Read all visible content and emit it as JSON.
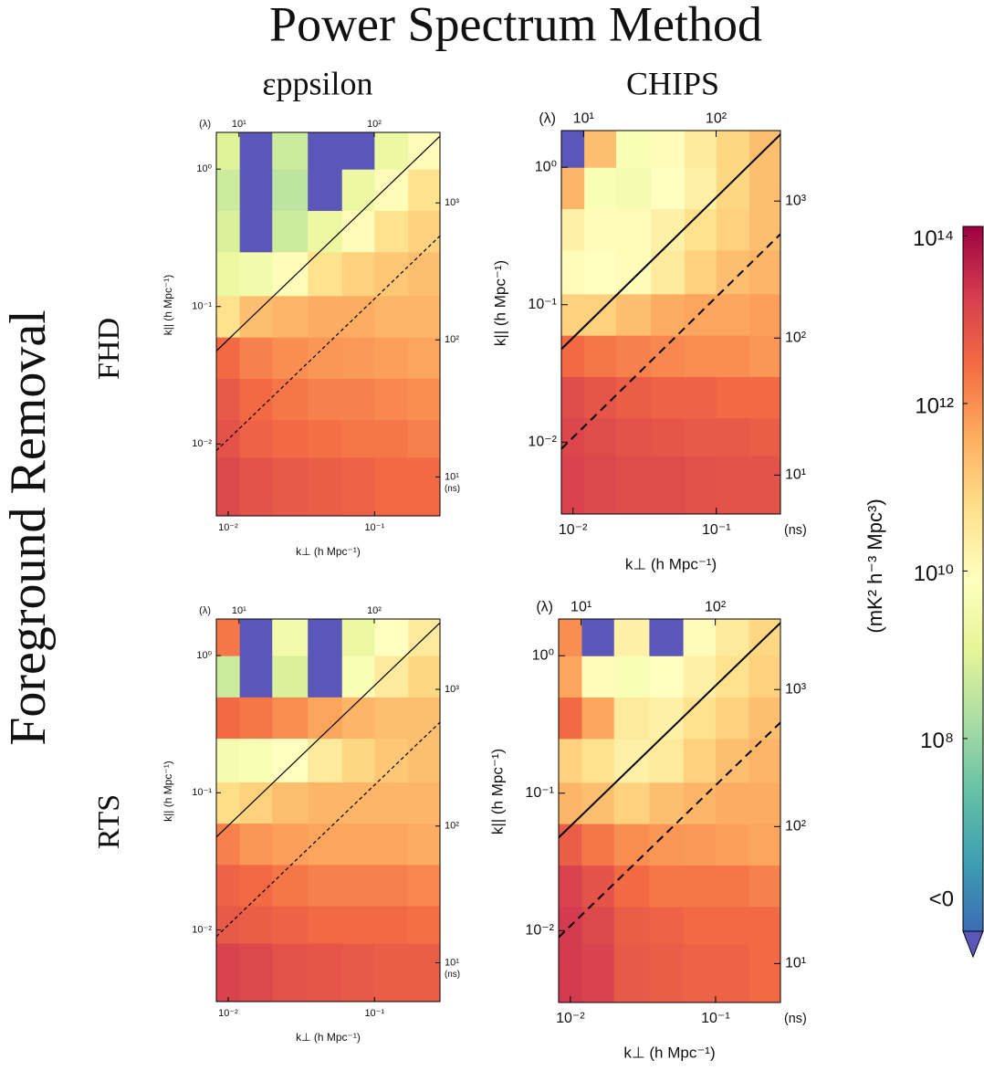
{
  "title": "Power Spectrum Method",
  "row_group_label": "Foreground Removal",
  "column_labels": [
    "εppsilon",
    "CHIPS"
  ],
  "row_labels": [
    "FHD",
    "RTS"
  ],
  "chart_data": [
    {
      "type": "heatmap",
      "x_label": "k⊥ (h Mpc⁻¹)",
      "y_label": "k|| (h Mpc⁻¹)",
      "x2_unit": "(λ)",
      "y2_unit": "(ns)",
      "log": true,
      "xlim": [
        0.0083,
        0.28
      ],
      "ylim": [
        0.003,
        1.85
      ],
      "x2lim": [
        6.8,
        306
      ],
      "y2lim": [
        5.2,
        3270
      ],
      "xticks": [
        {
          "value": 0.01,
          "label": "10⁻²"
        },
        {
          "value": 0.1,
          "label": "10⁻¹"
        }
      ],
      "yticks": [
        {
          "value": 1,
          "label": "10⁰"
        },
        {
          "value": 0.1,
          "label": "10⁻¹"
        },
        {
          "value": 0.01,
          "label": "10⁻²"
        }
      ],
      "x2ticks": [
        {
          "value": 10,
          "label": "10¹"
        },
        {
          "value": 100,
          "label": "10²"
        }
      ],
      "y2ticks": [
        {
          "value": 10,
          "label": "10¹"
        },
        {
          "value": 100,
          "label": "10²"
        },
        {
          "value": 1000,
          "label": "10³"
        }
      ],
      "x_edges": [
        0.0083,
        0.012,
        0.02,
        0.035,
        0.06,
        0.1,
        0.17,
        0.28
      ],
      "y_edges": [
        0.003,
        0.008,
        0.015,
        0.03,
        0.06,
        0.12,
        0.25,
        0.5,
        1.0,
        1.85
      ],
      "z": [
        [
          12000000000000.0,
          8000000000000.0,
          6000000000000.0,
          5000000000000.0,
          4000000000000.0,
          3000000000000.0,
          3000000000000.0
        ],
        [
          8000000000000.0,
          4000000000000.0,
          3000000000000.0,
          2500000000000.0,
          2000000000000.0,
          2000000000000.0,
          1500000000000.0
        ],
        [
          6000000000000.0,
          3000000000000.0,
          2000000000000.0,
          1500000000000.0,
          1500000000000.0,
          1200000000000.0,
          1000000000000.0
        ],
        [
          3000000000000.0,
          1500000000000.0,
          1000000000000.0,
          800000000000.0,
          700000000000.0,
          600000000000.0,
          500000000000.0
        ],
        [
          50000000000.0,
          200000000000.0,
          300000000000.0,
          400000000000.0,
          400000000000.0,
          300000000000.0,
          300000000000.0
        ],
        [
          2000000000.0,
          3000000000.0,
          10000000000.0,
          50000000000.0,
          100000000000.0,
          150000000000.0,
          200000000000.0
        ],
        [
          800000000.0,
          -100000000.0,
          500000000.0,
          2000000000.0,
          10000000000.0,
          50000000000.0,
          100000000000.0
        ],
        [
          500000000.0,
          -100000000.0,
          300000000.0,
          -100000000.0,
          2000000000.0,
          10000000000.0,
          50000000000.0
        ],
        [
          1000000000.0,
          -100000000.0,
          500000000.0,
          -100000000.0,
          -100000000.0,
          2000000000.0,
          10000000000.0
        ]
      ]
    },
    {
      "type": "heatmap",
      "x_label": "k⊥ (h Mpc⁻¹)",
      "y_label": "k|| (h Mpc⁻¹)",
      "x2_unit": "(λ)",
      "y2_unit": "(ns)",
      "log": true,
      "xlim": [
        0.0083,
        0.28
      ],
      "ylim": [
        0.003,
        1.85
      ],
      "x2lim": [
        6.8,
        306
      ],
      "y2lim": [
        5.2,
        3270
      ],
      "xticks": [
        {
          "value": 0.01,
          "label": "10⁻²"
        },
        {
          "value": 0.1,
          "label": "10⁻¹"
        }
      ],
      "yticks": [
        {
          "value": 1,
          "label": "10⁰"
        },
        {
          "value": 0.1,
          "label": "10⁻¹"
        },
        {
          "value": 0.01,
          "label": "10⁻²"
        }
      ],
      "x2ticks": [
        {
          "value": 10,
          "label": "10¹"
        },
        {
          "value": 100,
          "label": "10²"
        }
      ],
      "y2ticks": [
        {
          "value": 10,
          "label": "10¹"
        },
        {
          "value": 100,
          "label": "10²"
        },
        {
          "value": 1000,
          "label": "10³"
        }
      ],
      "x_edges": [
        0.0083,
        0.012,
        0.02,
        0.035,
        0.06,
        0.1,
        0.17,
        0.28
      ],
      "y_edges": [
        0.003,
        0.008,
        0.015,
        0.03,
        0.06,
        0.12,
        0.25,
        0.5,
        1.0,
        1.85
      ],
      "z": [
        [
          15000000000000.0,
          12000000000000.0,
          10000000000000.0,
          10000000000000.0,
          9000000000000.0,
          8000000000000.0,
          8000000000000.0
        ],
        [
          13000000000000.0,
          10000000000000.0,
          8000000000000.0,
          7000000000000.0,
          6000000000000.0,
          6000000000000.0,
          5000000000000.0
        ],
        [
          10000000000000.0,
          7000000000000.0,
          5000000000000.0,
          4000000000000.0,
          4000000000000.0,
          3000000000000.0,
          3000000000000.0
        ],
        [
          3000000000000.0,
          2000000000000.0,
          1500000000000.0,
          1200000000000.0,
          1000000000000.0,
          1000000000000.0,
          800000000000.0
        ],
        [
          100000000000.0,
          100000000000.0,
          200000000000.0,
          400000000000.0,
          500000000000.0,
          500000000000.0,
          600000000000.0
        ],
        [
          10000000000.0,
          8000000000.0,
          10000000000.0,
          30000000000.0,
          100000000000.0,
          200000000000.0,
          300000000000.0
        ],
        [
          20000000000.0,
          10000000000.0,
          10000000000.0,
          20000000000.0,
          50000000000.0,
          100000000000.0,
          200000000000.0
        ],
        [
          300000000000.0,
          5000000000.0,
          4000000000.0,
          8000000000.0,
          20000000000.0,
          80000000000.0,
          200000000000.0
        ],
        [
          -100000000.0,
          200000000000.0,
          5000000000.0,
          10000000000.0,
          30000000000.0,
          80000000000.0,
          200000000000.0
        ]
      ]
    },
    {
      "type": "heatmap",
      "x_label": "k⊥ (h Mpc⁻¹)",
      "y_label": "k|| (h Mpc⁻¹)",
      "x2_unit": "(λ)",
      "y2_unit": "(ns)",
      "log": true,
      "xlim": [
        0.0083,
        0.28
      ],
      "ylim": [
        0.003,
        1.85
      ],
      "x2lim": [
        6.8,
        306
      ],
      "y2lim": [
        5.2,
        3270
      ],
      "xticks": [
        {
          "value": 0.01,
          "label": "10⁻²"
        },
        {
          "value": 0.1,
          "label": "10⁻¹"
        }
      ],
      "yticks": [
        {
          "value": 1,
          "label": "10⁰"
        },
        {
          "value": 0.1,
          "label": "10⁻¹"
        },
        {
          "value": 0.01,
          "label": "10⁻²"
        }
      ],
      "x2ticks": [
        {
          "value": 10,
          "label": "10¹"
        },
        {
          "value": 100,
          "label": "10²"
        }
      ],
      "y2ticks": [
        {
          "value": 10,
          "label": "10¹"
        },
        {
          "value": 100,
          "label": "10²"
        },
        {
          "value": 1000,
          "label": "10³"
        }
      ],
      "x_edges": [
        0.0083,
        0.012,
        0.02,
        0.035,
        0.06,
        0.1,
        0.17,
        0.28
      ],
      "y_edges": [
        0.003,
        0.008,
        0.015,
        0.03,
        0.06,
        0.12,
        0.25,
        0.5,
        1.0,
        1.85
      ],
      "z": [
        [
          15000000000000.0,
          12000000000000.0,
          8000000000000.0,
          7000000000000.0,
          6000000000000.0,
          5000000000000.0,
          5000000000000.0
        ],
        [
          6000000000000.0,
          5000000000000.0,
          4000000000000.0,
          3000000000000.0,
          3000000000000.0,
          3000000000000.0,
          2500000000000.0
        ],
        [
          4000000000000.0,
          3000000000000.0,
          2000000000000.0,
          1500000000000.0,
          1500000000000.0,
          1500000000000.0,
          1200000000000.0
        ],
        [
          1500000000000.0,
          800000000000.0,
          600000000000.0,
          500000000000.0,
          500000000000.0,
          500000000000.0,
          400000000000.0
        ],
        [
          60000000000.0,
          100000000000.0,
          200000000000.0,
          300000000000.0,
          300000000000.0,
          300000000000.0,
          300000000000.0
        ],
        [
          4000000000.0,
          5000000000.0,
          8000000000.0,
          30000000000.0,
          80000000000.0,
          150000000000.0,
          200000000000.0
        ],
        [
          3000000000000.0,
          2000000000000.0,
          1000000000000.0,
          500000000000.0,
          300000000000.0,
          200000000000.0,
          200000000000.0
        ],
        [
          500000000.0,
          -100000000.0,
          800000000.0,
          -100000000.0,
          5000000000.0,
          30000000000.0,
          80000000000.0
        ],
        [
          2000000000000.0,
          -100000000.0,
          3000000000.0,
          -100000000.0,
          2000000000.0,
          8000000000.0,
          30000000000.0
        ]
      ]
    },
    {
      "type": "heatmap",
      "x_label": "k⊥ (h Mpc⁻¹)",
      "y_label": "k|| (h Mpc⁻¹)",
      "x2_unit": "(λ)",
      "y2_unit": "(ns)",
      "log": true,
      "xlim": [
        0.0083,
        0.28
      ],
      "ylim": [
        0.003,
        1.85
      ],
      "x2lim": [
        6.8,
        306
      ],
      "y2lim": [
        5.2,
        3270
      ],
      "xticks": [
        {
          "value": 0.01,
          "label": "10⁻²"
        },
        {
          "value": 0.1,
          "label": "10⁻¹"
        }
      ],
      "yticks": [
        {
          "value": 1,
          "label": "10⁰"
        },
        {
          "value": 0.1,
          "label": "10⁻¹"
        },
        {
          "value": 0.01,
          "label": "10⁻²"
        }
      ],
      "x2ticks": [
        {
          "value": 10,
          "label": "10¹"
        },
        {
          "value": 100,
          "label": "10²"
        }
      ],
      "y2ticks": [
        {
          "value": 10,
          "label": "10¹"
        },
        {
          "value": 100,
          "label": "10²"
        },
        {
          "value": 1000,
          "label": "10³"
        }
      ],
      "x_edges": [
        0.0083,
        0.012,
        0.02,
        0.035,
        0.06,
        0.1,
        0.17,
        0.28
      ],
      "y_edges": [
        0.003,
        0.008,
        0.015,
        0.03,
        0.06,
        0.12,
        0.25,
        0.5,
        1.0,
        1.85
      ],
      "z": [
        [
          20000000000000.0,
          15000000000000.0,
          6000000000000.0,
          5000000000000.0,
          4000000000000.0,
          4000000000000.0,
          3000000000000.0
        ],
        [
          20000000000000.0,
          12000000000000.0,
          5000000000000.0,
          4000000000000.0,
          3000000000000.0,
          3000000000000.0,
          3000000000000.0
        ],
        [
          15000000000000.0,
          8000000000000.0,
          3000000000000.0,
          2000000000000.0,
          2000000000000.0,
          2000000000000.0,
          1500000000000.0
        ],
        [
          5000000000000.0,
          2000000000000.0,
          1000000000000.0,
          800000000000.0,
          700000000000.0,
          600000000000.0,
          500000000000.0
        ],
        [
          300000000000.0,
          200000000000.0,
          100000000000.0,
          200000000000.0,
          300000000000.0,
          400000000000.0,
          400000000000.0
        ],
        [
          100000000000.0,
          50000000000.0,
          20000000000.0,
          30000000000.0,
          100000000000.0,
          200000000000.0,
          300000000000.0
        ],
        [
          3000000000000.0,
          500000000000.0,
          30000000000.0,
          20000000000.0,
          50000000000.0,
          100000000000.0,
          200000000000.0
        ],
        [
          500000000000.0,
          10000000000.0,
          5000000000.0,
          8000000000.0,
          20000000000.0,
          50000000000.0,
          100000000000.0
        ],
        [
          1000000000000.0,
          -100000000.0,
          20000000000.0,
          -100000000.0,
          10000000000.0,
          30000000000.0,
          80000000000.0
        ]
      ]
    },
    {
      "type": "colorbar",
      "label": "(mK² h⁻³ Mpc³)",
      "log": true,
      "zlim": [
        500000.0,
        130000000000000.0
      ],
      "zticks": [
        {
          "value": 100000000.0,
          "label": "10⁸"
        },
        {
          "value": 10000000000.0,
          "label": "10¹⁰"
        },
        {
          "value": 1000000000000.0,
          "label": "10¹²"
        },
        {
          "value": 100000000000000.0,
          "label": "10¹⁴"
        }
      ],
      "under_label": "<0",
      "under_color": "#5a57b8",
      "colormap": [
        "#3b6db4",
        "#3f9fb2",
        "#66c2a5",
        "#abdda4",
        "#e6f598",
        "#ffffbf",
        "#fee08b",
        "#fdae61",
        "#f46d43",
        "#d53e4f",
        "#9e0142"
      ]
    }
  ]
}
